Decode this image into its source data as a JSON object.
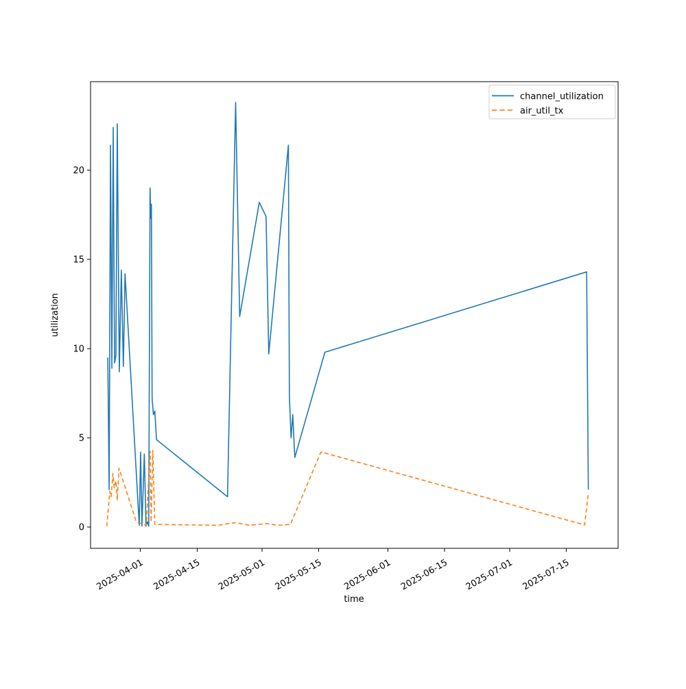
{
  "figure": {
    "background": "#ffffff"
  },
  "chart_data": {
    "type": "line",
    "title": "",
    "xlabel": "time",
    "ylabel": "utilization",
    "grid": false,
    "legend_position": "upper right",
    "x_tick_labels": [
      "2025-04-01",
      "2025-04-15",
      "2025-05-01",
      "2025-05-15",
      "2025-06-01",
      "2025-06-15",
      "2025-07-01",
      "2025-07-15"
    ],
    "y_tick_labels": [
      "0",
      "5",
      "10",
      "15",
      "20"
    ],
    "y_tick_values": [
      0,
      5,
      10,
      15,
      20
    ],
    "x_range": [
      "2025-03-19T18:00:00Z",
      "2025-07-27T18:00:00Z"
    ],
    "y_range": [
      -1.19,
      24.96
    ],
    "axis_color": "#000000",
    "series": [
      {
        "name": "channel_utilization",
        "color": "#1f77b4",
        "line_style": "solid",
        "points": [
          [
            "2025-03-24T00:00:00Z",
            9.5
          ],
          [
            "2025-03-24T08:00:00Z",
            2.1
          ],
          [
            "2025-03-24T16:00:00Z",
            21.4
          ],
          [
            "2025-03-25T00:00:00Z",
            8.9
          ],
          [
            "2025-03-25T08:00:00Z",
            22.4
          ],
          [
            "2025-03-25T16:00:00Z",
            9.2
          ],
          [
            "2025-03-26T00:00:00Z",
            9.6
          ],
          [
            "2025-03-26T08:00:00Z",
            22.6
          ],
          [
            "2025-03-26T20:00:00Z",
            8.7
          ],
          [
            "2025-03-27T08:00:00Z",
            14.4
          ],
          [
            "2025-03-27T20:00:00Z",
            9.0
          ],
          [
            "2025-03-28T06:00:00Z",
            14.2
          ],
          [
            "2025-03-31T18:00:00Z",
            0.1
          ],
          [
            "2025-04-01T02:00:00Z",
            4.2
          ],
          [
            "2025-04-01T10:00:00Z",
            0.05
          ],
          [
            "2025-04-02T00:00:00Z",
            4.1
          ],
          [
            "2025-04-02T10:00:00Z",
            0.05
          ],
          [
            "2025-04-02T18:00:00Z",
            0.3
          ],
          [
            "2025-04-03T02:00:00Z",
            0.05
          ],
          [
            "2025-04-03T10:00:00Z",
            19.0
          ],
          [
            "2025-04-03T14:00:00Z",
            17.3
          ],
          [
            "2025-04-03T18:00:00Z",
            18.1
          ],
          [
            "2025-04-03T22:00:00Z",
            7.2
          ],
          [
            "2025-04-04T06:00:00Z",
            6.3
          ],
          [
            "2025-04-04T14:00:00Z",
            6.5
          ],
          [
            "2025-04-05T00:00:00Z",
            4.9
          ],
          [
            "2025-04-22T12:00:00Z",
            1.7
          ],
          [
            "2025-04-24T12:00:00Z",
            23.8
          ],
          [
            "2025-04-25T12:00:00Z",
            11.8
          ],
          [
            "2025-04-30T08:00:00Z",
            18.2
          ],
          [
            "2025-05-02T00:00:00Z",
            17.4
          ],
          [
            "2025-05-02T16:00:00Z",
            9.7
          ],
          [
            "2025-05-07T12:00:00Z",
            21.4
          ],
          [
            "2025-05-07T18:00:00Z",
            7.3
          ],
          [
            "2025-05-08T04:00:00Z",
            5.0
          ],
          [
            "2025-05-08T14:00:00Z",
            6.3
          ],
          [
            "2025-05-09T02:00:00Z",
            3.9
          ],
          [
            "2025-05-16T12:00:00Z",
            9.8
          ],
          [
            "2025-07-20T00:00:00Z",
            14.3
          ],
          [
            "2025-07-20T10:00:00Z",
            2.1
          ]
        ]
      },
      {
        "name": "air_util_tx",
        "color": "#ff7f0e",
        "line_style": "dashed",
        "points": [
          [
            "2025-03-23T18:00:00Z",
            0.05
          ],
          [
            "2025-03-24T12:00:00Z",
            2.0
          ],
          [
            "2025-03-24T20:00:00Z",
            1.7
          ],
          [
            "2025-03-25T06:00:00Z",
            3.0
          ],
          [
            "2025-03-25T14:00:00Z",
            2.2
          ],
          [
            "2025-03-26T00:00:00Z",
            2.6
          ],
          [
            "2025-03-26T08:00:00Z",
            1.5
          ],
          [
            "2025-03-26T18:00:00Z",
            3.3
          ],
          [
            "2025-03-27T08:00:00Z",
            2.9
          ],
          [
            "2025-03-31T00:00:00Z",
            0.3
          ],
          [
            "2025-04-02T12:00:00Z",
            0.1
          ],
          [
            "2025-04-03T10:00:00Z",
            4.25
          ],
          [
            "2025-04-03T16:00:00Z",
            0.3
          ],
          [
            "2025-04-04T02:00:00Z",
            4.3
          ],
          [
            "2025-04-04T14:00:00Z",
            0.15
          ],
          [
            "2025-04-20T00:00:00Z",
            0.1
          ],
          [
            "2025-04-24T12:00:00Z",
            0.25
          ],
          [
            "2025-04-28T00:00:00Z",
            0.1
          ],
          [
            "2025-05-02T00:00:00Z",
            0.2
          ],
          [
            "2025-05-05T00:00:00Z",
            0.1
          ],
          [
            "2025-05-08T00:00:00Z",
            0.15
          ],
          [
            "2025-05-15T12:00:00Z",
            4.2
          ],
          [
            "2025-05-16T12:00:00Z",
            4.15
          ],
          [
            "2025-07-19T12:00:00Z",
            0.12
          ],
          [
            "2025-07-20T10:00:00Z",
            1.9
          ]
        ]
      }
    ]
  }
}
